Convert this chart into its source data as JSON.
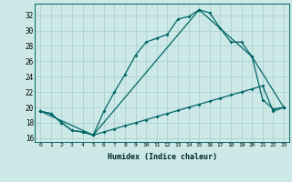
{
  "xlabel": "Humidex (Indice chaleur)",
  "bg_color": "#cce9e8",
  "line_color": "#006666",
  "grid_color": "#aacccc",
  "xlim": [
    -0.5,
    23.5
  ],
  "ylim": [
    15.5,
    33.5
  ],
  "yticks": [
    16,
    18,
    20,
    22,
    24,
    26,
    28,
    30,
    32
  ],
  "xticks": [
    0,
    1,
    2,
    3,
    4,
    5,
    6,
    7,
    8,
    9,
    10,
    11,
    12,
    13,
    14,
    15,
    16,
    17,
    18,
    19,
    20,
    21,
    22,
    23
  ],
  "curve1_x": [
    0,
    1,
    2,
    3,
    4,
    5,
    6,
    7,
    8,
    9,
    10,
    11,
    12,
    13,
    14,
    15,
    16,
    17,
    18,
    19,
    20,
    21,
    22,
    23
  ],
  "curve1_y": [
    19.5,
    19.2,
    18.0,
    17.0,
    16.8,
    16.4,
    16.8,
    17.2,
    17.6,
    18.0,
    18.4,
    18.8,
    19.2,
    19.6,
    20.0,
    20.4,
    20.8,
    21.2,
    21.6,
    22.0,
    22.4,
    22.8,
    19.5,
    20.0
  ],
  "curve2_x": [
    0,
    1,
    2,
    3,
    4,
    5,
    6,
    7,
    8,
    9,
    10,
    11,
    12,
    13,
    14,
    15,
    16,
    17,
    18,
    19,
    20,
    21,
    22,
    23
  ],
  "curve2_y": [
    19.5,
    19.2,
    18.0,
    17.0,
    16.8,
    16.4,
    19.5,
    22.0,
    24.3,
    26.8,
    28.5,
    29.0,
    29.5,
    31.5,
    31.8,
    32.7,
    32.3,
    30.3,
    28.5,
    28.5,
    26.6,
    21.0,
    19.8,
    20.0
  ],
  "curve3_x": [
    0,
    5,
    15,
    20,
    23
  ],
  "curve3_y": [
    19.5,
    16.4,
    32.7,
    26.6,
    20.0
  ]
}
